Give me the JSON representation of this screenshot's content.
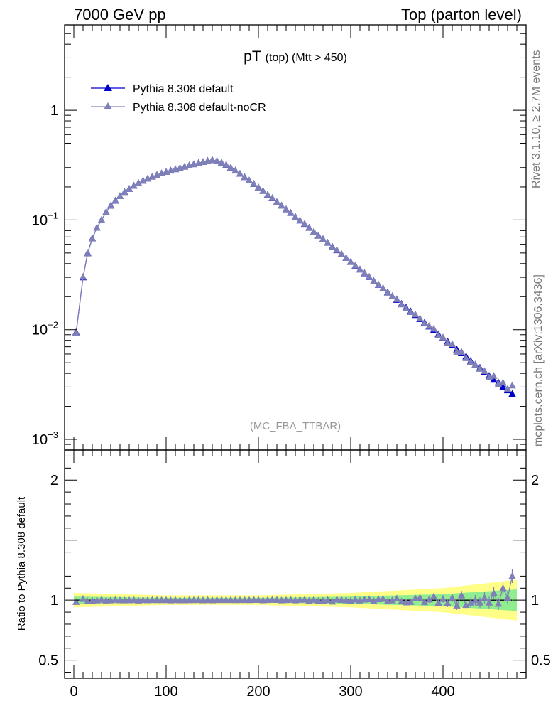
{
  "header": {
    "left": "7000 GeV pp",
    "right": "Top (parton level)"
  },
  "side_labels": {
    "rivet": "Rivet 3.1.10, ≥ 2.7M events",
    "mcplots": "mcplots.cern.ch [arXiv:1306.3436]"
  },
  "colors": {
    "series1": "#0000cc",
    "series2": "#8080b8",
    "band_green": "#90ee90",
    "band_yellow": "#ffff88"
  },
  "chart_data": [
    {
      "panel": "main",
      "type": "line",
      "title": "pT",
      "title_small": "(top) (Mtt > 450)",
      "watermark": "(MC_FBA_TTBAR)",
      "yscale": "log",
      "ylim": [
        0.0008,
        6
      ],
      "xlim": [
        -10,
        490
      ],
      "y_ticks": [
        {
          "value": 1,
          "base": "1",
          "exp": ""
        },
        {
          "value": 0.1,
          "base": "10",
          "exp": "−1"
        },
        {
          "value": 0.01,
          "base": "10",
          "exp": "−2"
        },
        {
          "value": 0.001,
          "base": "10",
          "exp": "−3"
        }
      ],
      "legend_placement": "top-left",
      "x": [
        2.5,
        10,
        15,
        20,
        25,
        30,
        35,
        40,
        45,
        50,
        55,
        60,
        65,
        70,
        75,
        80,
        85,
        90,
        95,
        100,
        105,
        110,
        115,
        120,
        125,
        130,
        135,
        140,
        145,
        150,
        155,
        160,
        165,
        170,
        175,
        180,
        185,
        190,
        195,
        200,
        205,
        210,
        215,
        220,
        225,
        230,
        235,
        240,
        245,
        250,
        255,
        260,
        265,
        270,
        275,
        280,
        285,
        290,
        295,
        300,
        305,
        310,
        315,
        320,
        325,
        330,
        335,
        340,
        345,
        350,
        355,
        360,
        365,
        370,
        375,
        380,
        385,
        390,
        395,
        400,
        405,
        410,
        415,
        420,
        425,
        430,
        435,
        440,
        445,
        450,
        455,
        460,
        465,
        470,
        475
      ],
      "series": [
        {
          "name": "Pythia 8.308 default",
          "marker": "triangle-filled",
          "values": [
            0.0095,
            0.03,
            0.05,
            0.068,
            0.085,
            0.1,
            0.118,
            0.135,
            0.15,
            0.165,
            0.18,
            0.192,
            0.205,
            0.217,
            0.228,
            0.238,
            0.248,
            0.257,
            0.266,
            0.274,
            0.282,
            0.29,
            0.298,
            0.306,
            0.314,
            0.322,
            0.33,
            0.338,
            0.346,
            0.352,
            0.345,
            0.333,
            0.318,
            0.3,
            0.282,
            0.264,
            0.246,
            0.229,
            0.213,
            0.198,
            0.184,
            0.17,
            0.158,
            0.146,
            0.135,
            0.125,
            0.116,
            0.107,
            0.099,
            0.092,
            0.085,
            0.078,
            0.072,
            0.067,
            0.062,
            0.057,
            0.053,
            0.049,
            0.045,
            0.0415,
            0.0383,
            0.0354,
            0.0327,
            0.0302,
            0.0278,
            0.0257,
            0.0237,
            0.0219,
            0.0202,
            0.0187,
            0.0172,
            0.0159,
            0.0147,
            0.0136,
            0.0125,
            0.0116,
            0.0107,
            0.0099,
            0.0091,
            0.0084,
            0.0078,
            0.0072,
            0.0066,
            0.0061,
            0.0057,
            0.0052,
            0.0048,
            0.0045,
            0.0041,
            0.0038,
            0.0035,
            0.0033,
            0.003,
            0.0028,
            0.0026
          ]
        },
        {
          "name": "Pythia 8.308 default-noCR",
          "marker": "triangle-filled",
          "values": [
            0.0094,
            0.0303,
            0.0495,
            0.0677,
            0.0849,
            0.1003,
            0.1176,
            0.1347,
            0.1504,
            0.1648,
            0.1797,
            0.1918,
            0.2053,
            0.2163,
            0.2281,
            0.2376,
            0.2482,
            0.2569,
            0.266,
            0.2741,
            0.2815,
            0.2903,
            0.2978,
            0.3058,
            0.3141,
            0.322,
            0.3302,
            0.3376,
            0.3462,
            0.3518,
            0.3453,
            0.3333,
            0.3184,
            0.3003,
            0.2819,
            0.2642,
            0.2463,
            0.229,
            0.2134,
            0.1985,
            0.1838,
            0.1702,
            0.1585,
            0.1463,
            0.1348,
            0.125,
            0.1163,
            0.1068,
            0.0993,
            0.0924,
            0.0846,
            0.0782,
            0.0716,
            0.0667,
            0.0621,
            0.0563,
            0.0533,
            0.0491,
            0.045,
            0.0413,
            0.0385,
            0.0353,
            0.0329,
            0.0304,
            0.0276,
            0.0259,
            0.024,
            0.0217,
            0.0202,
            0.019,
            0.017,
            0.0156,
            0.0145,
            0.0138,
            0.0127,
            0.0114,
            0.0108,
            0.0102,
            0.0089,
            0.0085,
            0.0076,
            0.0074,
            0.0063,
            0.0063,
            0.0055,
            0.0051,
            0.0048,
            0.0044,
            0.0042,
            0.0037,
            0.0038,
            0.0032,
            0.0033,
            0.0029,
            0.0031
          ]
        }
      ]
    },
    {
      "panel": "ratio",
      "type": "line",
      "ylabel": "Ratio to Pythia 8.308 default",
      "yscale": "linear",
      "ylim": [
        0.35,
        2.25
      ],
      "xlim": [
        -10,
        490
      ],
      "x_ticks": [
        0,
        100,
        200,
        300,
        400
      ],
      "y_ticks": [
        {
          "value": 2,
          "label": "2"
        },
        {
          "value": 1,
          "label": "1"
        },
        {
          "value": 0.5,
          "label": "0.5"
        }
      ],
      "band_green": {
        "x": [
          0,
          100,
          200,
          300,
          400,
          480
        ],
        "half_width": [
          0.03,
          0.02,
          0.02,
          0.03,
          0.05,
          0.09
        ]
      },
      "band_yellow": {
        "x": [
          0,
          100,
          200,
          300,
          400,
          480
        ],
        "half_width": [
          0.06,
          0.04,
          0.04,
          0.06,
          0.1,
          0.17
        ]
      },
      "x": [
        2.5,
        10,
        15,
        20,
        25,
        30,
        35,
        40,
        45,
        50,
        55,
        60,
        65,
        70,
        75,
        80,
        85,
        90,
        95,
        100,
        105,
        110,
        115,
        120,
        125,
        130,
        135,
        140,
        145,
        150,
        155,
        160,
        165,
        170,
        175,
        180,
        185,
        190,
        195,
        200,
        205,
        210,
        215,
        220,
        225,
        230,
        235,
        240,
        245,
        250,
        255,
        260,
        265,
        270,
        275,
        280,
        285,
        290,
        295,
        300,
        305,
        310,
        315,
        320,
        325,
        330,
        335,
        340,
        345,
        350,
        355,
        360,
        365,
        370,
        375,
        380,
        385,
        390,
        395,
        400,
        405,
        410,
        415,
        420,
        425,
        430,
        435,
        440,
        445,
        450,
        455,
        460,
        465,
        470,
        475
      ],
      "series": [
        {
          "name": "Pythia 8.308 default",
          "values": [
            1,
            1,
            1,
            1,
            1,
            1,
            1,
            1,
            1,
            1,
            1,
            1,
            1,
            1,
            1,
            1,
            1,
            1,
            1,
            1,
            1,
            1,
            1,
            1,
            1,
            1,
            1,
            1,
            1,
            1,
            1,
            1,
            1,
            1,
            1,
            1,
            1,
            1,
            1,
            1,
            1,
            1,
            1,
            1,
            1,
            1,
            1,
            1,
            1,
            1,
            1,
            1,
            1,
            1,
            1,
            1,
            1,
            1,
            1,
            1,
            1,
            1,
            1,
            1,
            1,
            1,
            1,
            1,
            1,
            1,
            1,
            1,
            1,
            1,
            1,
            1,
            1,
            1,
            1,
            1,
            1,
            1,
            1,
            1,
            1,
            1,
            1,
            1,
            1,
            1,
            1,
            1,
            1,
            1,
            1
          ]
        },
        {
          "name": "Pythia 8.308 default-noCR",
          "values": [
            0.985,
            1.01,
            0.99,
            0.995,
            0.998,
            1.003,
            0.997,
            0.998,
            1.003,
            0.999,
            0.998,
            0.999,
            1.001,
            0.997,
            1.0,
            0.999,
            1.001,
            1.0,
            1.0,
            1.0,
            0.998,
            1.001,
            0.999,
            0.999,
            1.0,
            1.0,
            1.001,
            0.999,
            1.001,
            0.999,
            1.001,
            1.001,
            1.001,
            1.001,
            1.0,
            1.001,
            1.001,
            1.0,
            1.002,
            1.002,
            0.999,
            1.001,
            1.003,
            1.002,
            0.998,
            1.0,
            1.003,
            0.998,
            1.003,
            1.004,
            0.995,
            1.003,
            0.994,
            0.996,
            1.002,
            0.988,
            1.005,
            1.002,
            0.999,
            0.995,
            1.005,
            0.997,
            1.005,
            1.007,
            0.993,
            1.008,
            1.011,
            0.991,
            0.998,
            1.014,
            0.989,
            0.981,
            0.985,
            1.015,
            1.02,
            0.983,
            1.005,
            1.03,
            0.978,
            1.01,
            0.975,
            1.02,
            0.955,
            1.04,
            0.96,
            0.98,
            1.0,
            0.98,
            1.02,
            0.98,
            1.06,
            0.97,
            1.1,
            1.02,
            1.2
          ]
        }
      ]
    }
  ]
}
